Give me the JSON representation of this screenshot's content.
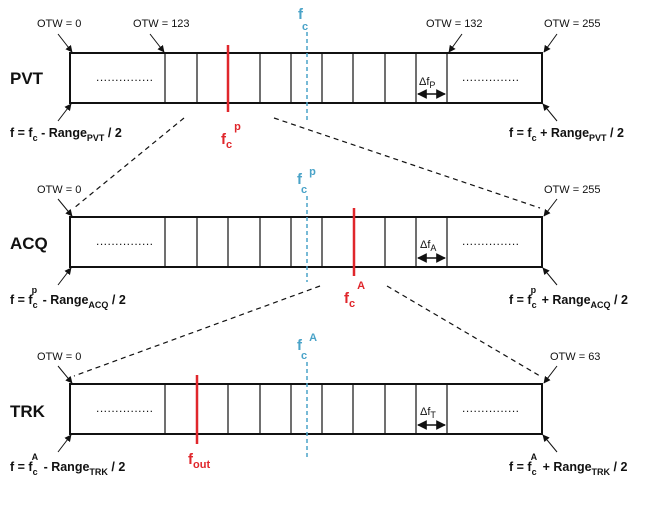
{
  "colors": {
    "accent_red": "#e0262b",
    "accent_blue": "#4aa3c8",
    "line": "#111111"
  },
  "pvt": {
    "name": "PVT",
    "otw_left": "OTW = 0",
    "otw_mid_left": "OTW = 123",
    "otw_mid_right": "OTW = 132",
    "otw_right": "OTW = 255",
    "center": {
      "base": "f",
      "sub": "c"
    },
    "marker": {
      "base": "f",
      "sub": "c",
      "sup": "p"
    },
    "delta": {
      "base": "Δf",
      "sub": "P"
    },
    "dots": "...............",
    "left_formula": {
      "a": "f = f",
      "a_sub": "c",
      "b": " - Range",
      "b_sub": "PVT",
      "c": " / 2"
    },
    "right_formula": {
      "a": "f = f",
      "a_sub": "c",
      "b": " + Range",
      "b_sub": "PVT",
      "c": " / 2"
    }
  },
  "acq": {
    "name": "ACQ",
    "otw_left": "OTW = 0",
    "otw_right": "OTW = 255",
    "center": {
      "base": "f",
      "sub": "c",
      "sup": "p"
    },
    "marker": {
      "base": "f",
      "sub": "c",
      "sup": "A"
    },
    "delta": {
      "base": "Δf",
      "sub": "A"
    },
    "dots": "...............",
    "left_formula": {
      "a": "f = f",
      "a_sub": "c",
      "a_sup": "p",
      "b": " - Range",
      "b_sub": "ACQ",
      "c": " / 2"
    },
    "right_formula": {
      "a": "f = f",
      "a_sub": "c",
      "a_sup": "p",
      "b": " + Range",
      "b_sub": "ACQ",
      "c": " / 2"
    }
  },
  "trk": {
    "name": "TRK",
    "otw_left": "OTW = 0",
    "otw_right": "OTW = 63",
    "center": {
      "base": "f",
      "sub": "c",
      "sup": "A"
    },
    "marker": {
      "base": "f",
      "sub": "out"
    },
    "delta": {
      "base": "Δf",
      "sub": "T"
    },
    "dots": "...............",
    "left_formula": {
      "a": "f = f",
      "a_sub": "c",
      "a_sup": "A",
      "b": " - Range",
      "b_sub": "TRK",
      "c": " / 2"
    },
    "right_formula": {
      "a": "f = f",
      "a_sub": "c",
      "a_sup": "A",
      "b": " + Range",
      "b_sub": "TRK",
      "c": " / 2"
    }
  }
}
